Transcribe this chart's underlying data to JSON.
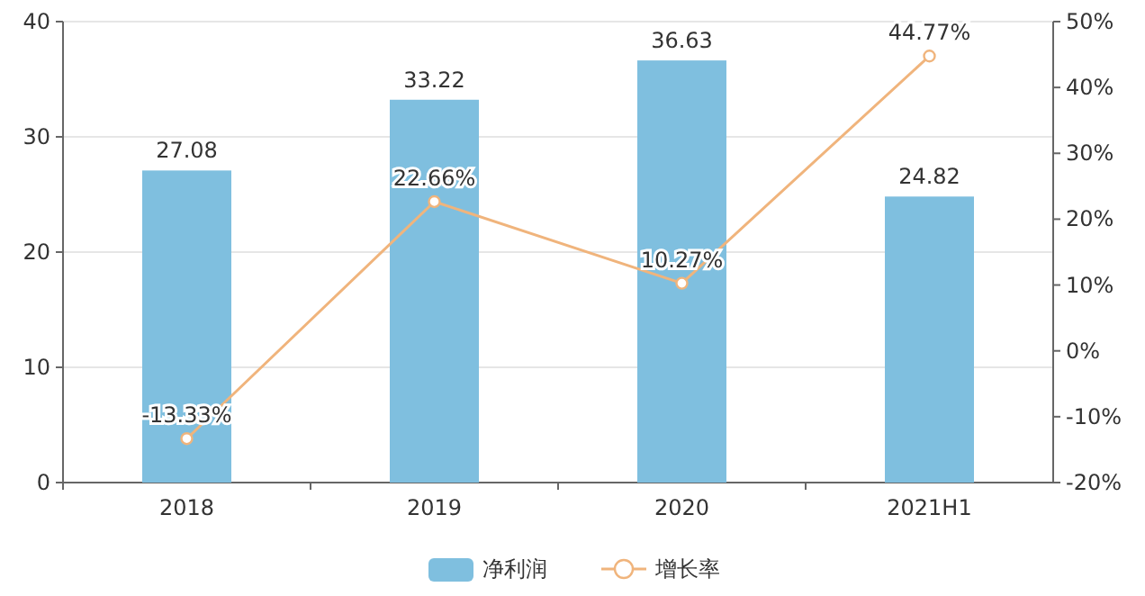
{
  "chart_data": {
    "type": "bar",
    "categories": [
      "2018",
      "2019",
      "2020",
      "2021H1"
    ],
    "series": [
      {
        "name": "净利润",
        "color": "#7fbfdf",
        "values": [
          27.08,
          33.22,
          36.63,
          24.82
        ],
        "value_labels": [
          "27.08",
          "33.22",
          "36.63",
          "24.82"
        ]
      },
      {
        "name": "增长率",
        "type": "line",
        "axis": "y2",
        "color": "#f0b47c",
        "marker": "circle",
        "values": [
          -13.33,
          22.66,
          10.27,
          44.77
        ],
        "value_labels": [
          "-13.33%",
          "22.66%",
          "10.27%",
          "44.77%"
        ]
      }
    ],
    "ylim": [
      0,
      40
    ],
    "yticks": [
      0,
      10,
      20,
      30,
      40
    ],
    "y2lim": [
      -20,
      50
    ],
    "y2ticks": [
      {
        "value": -20,
        "label": "-20%"
      },
      {
        "value": -10,
        "label": "-10%"
      },
      {
        "value": 0,
        "label": "0%"
      },
      {
        "value": 10,
        "label": "10%"
      },
      {
        "value": 20,
        "label": "20%"
      },
      {
        "value": 30,
        "label": "30%"
      },
      {
        "value": 40,
        "label": "40%"
      },
      {
        "value": 50,
        "label": "50%"
      }
    ],
    "grid": "y",
    "legend": "bottom"
  }
}
